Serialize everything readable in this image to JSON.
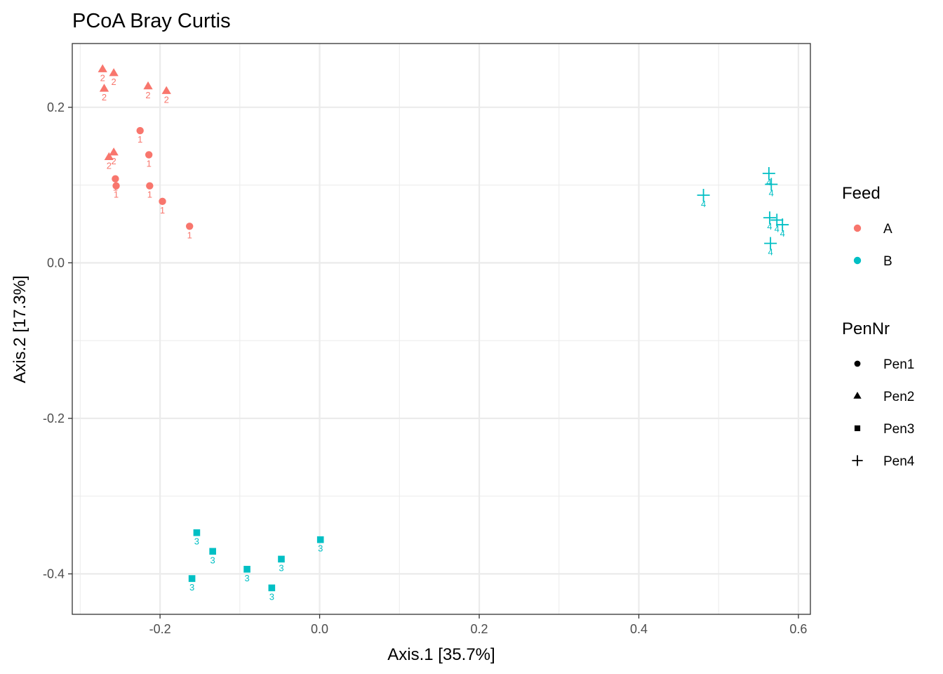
{
  "chart_data": {
    "type": "scatter",
    "title": "PCoA Bray Curtis",
    "xlabel": "Axis.1   [35.7%]",
    "ylabel": "Axis.2   [17.3%]",
    "xlim": [
      -0.31,
      0.615
    ],
    "ylim": [
      -0.452,
      0.282
    ],
    "x_ticks": [
      -0.2,
      0.0,
      0.2,
      0.4,
      0.6
    ],
    "x_tick_labels": [
      "-0.2",
      "0.0",
      "0.2",
      "0.4",
      "0.6"
    ],
    "y_ticks": [
      -0.4,
      -0.2,
      0.0,
      0.2
    ],
    "y_tick_labels": [
      "-0.4",
      "-0.2",
      "0.0",
      "0.2"
    ],
    "grid": true,
    "legend_position": "right",
    "legends": [
      {
        "title": "Feed",
        "entries": [
          {
            "label": "A",
            "color": "#F8766D"
          },
          {
            "label": "B",
            "color": "#00BFC4"
          }
        ]
      },
      {
        "title": "PenNr",
        "entries": [
          {
            "label": "Pen1",
            "shape": "circle"
          },
          {
            "label": "Pen2",
            "shape": "triangle"
          },
          {
            "label": "Pen3",
            "shape": "square"
          },
          {
            "label": "Pen4",
            "shape": "plus"
          }
        ]
      }
    ],
    "series": [
      {
        "feed": "A",
        "pen": "Pen1",
        "shape": "circle",
        "color": "#F8766D",
        "label": "1",
        "points": [
          [
            -0.225,
            0.17
          ],
          [
            -0.214,
            0.139
          ],
          [
            -0.256,
            0.108
          ],
          [
            -0.255,
            0.099
          ],
          [
            -0.213,
            0.099
          ],
          [
            -0.197,
            0.079
          ],
          [
            -0.163,
            0.047
          ]
        ]
      },
      {
        "feed": "A",
        "pen": "Pen2",
        "shape": "triangle",
        "color": "#F8766D",
        "label": "2",
        "points": [
          [
            -0.272,
            0.249
          ],
          [
            -0.258,
            0.244
          ],
          [
            -0.27,
            0.224
          ],
          [
            -0.215,
            0.227
          ],
          [
            -0.192,
            0.221
          ],
          [
            -0.264,
            0.136
          ],
          [
            -0.258,
            0.142
          ]
        ]
      },
      {
        "feed": "B",
        "pen": "Pen3",
        "shape": "square",
        "color": "#00BFC4",
        "label": "3",
        "points": [
          [
            -0.154,
            -0.347
          ],
          [
            -0.134,
            -0.371
          ],
          [
            -0.16,
            -0.406
          ],
          [
            -0.091,
            -0.394
          ],
          [
            -0.048,
            -0.381
          ],
          [
            -0.06,
            -0.418
          ],
          [
            0.001,
            -0.356
          ]
        ]
      },
      {
        "feed": "B",
        "pen": "Pen4",
        "shape": "plus",
        "color": "#00BFC4",
        "label": "4",
        "points": [
          [
            0.481,
            0.087
          ],
          [
            0.563,
            0.115
          ],
          [
            0.566,
            0.101
          ],
          [
            0.564,
            0.058
          ],
          [
            0.573,
            0.055
          ],
          [
            0.58,
            0.049
          ],
          [
            0.565,
            0.025
          ]
        ]
      }
    ]
  }
}
